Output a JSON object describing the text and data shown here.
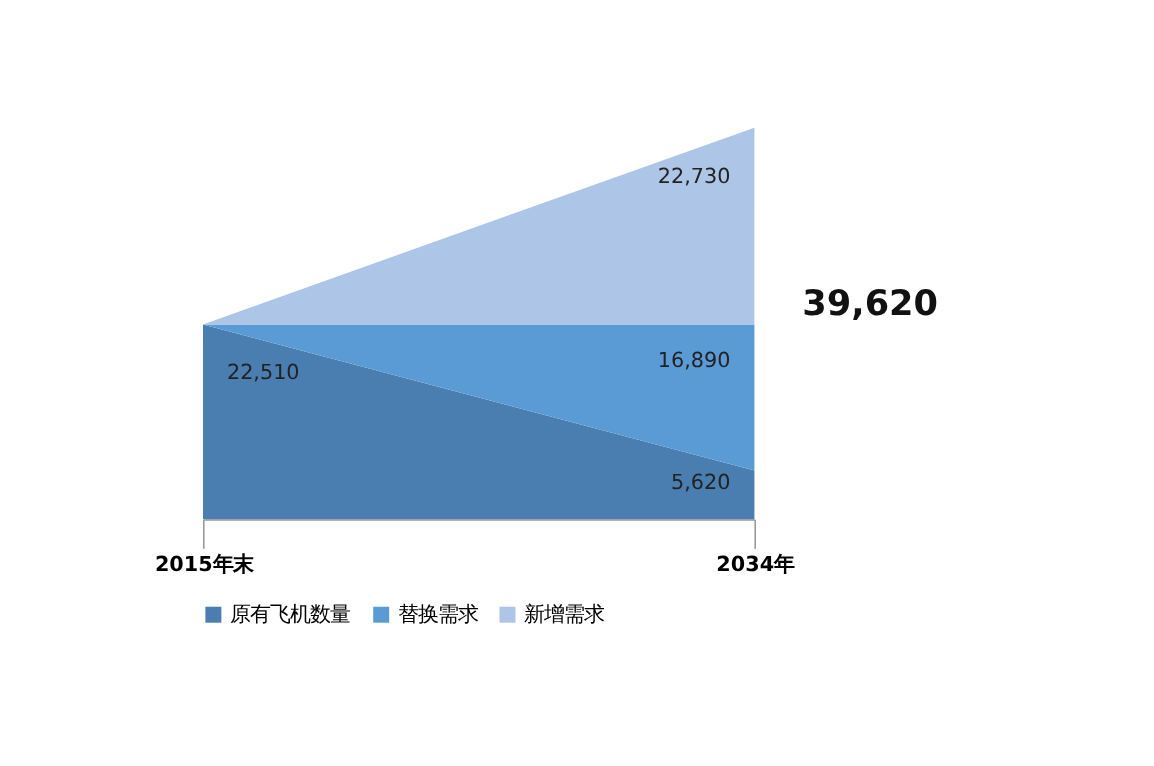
{
  "chart_data": {
    "type": "area",
    "stacked": true,
    "categories": [
      "2015年末",
      "2034年"
    ],
    "series": [
      {
        "name": "原有飞机数量",
        "color": "#4a7eb0",
        "values": [
          22510,
          5620
        ],
        "value_labels": [
          "22,510",
          "5,620"
        ]
      },
      {
        "name": "替换需求",
        "color": "#5b9bd5",
        "values": [
          0,
          16890
        ],
        "value_labels": [
          null,
          "16,890"
        ]
      },
      {
        "name": "新增需求",
        "color": "#adc5e6",
        "values": [
          0,
          22730
        ],
        "value_labels": [
          null,
          "22,730"
        ]
      }
    ],
    "annotations": [
      "39,620"
    ],
    "legend": "bottom",
    "grid": false,
    "tick_labels": "x"
  }
}
